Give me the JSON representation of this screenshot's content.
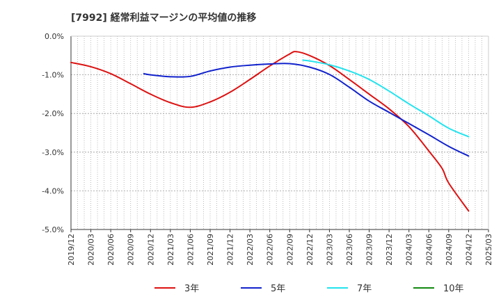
{
  "chart_data": {
    "type": "line",
    "title": "[7992]  経常利益マージンの平均値の推移",
    "xlabel": "",
    "ylabel": "",
    "ylim": [
      -5.0,
      0.0
    ],
    "yticks": [
      0.0,
      -1.0,
      -2.0,
      -3.0,
      -4.0,
      -5.0
    ],
    "ytick_labels": [
      "0.0%",
      "-1.0%",
      "-2.0%",
      "-3.0%",
      "-4.0%",
      "-5.0%"
    ],
    "x_range": [
      "2019/12",
      "2025/03"
    ],
    "xtick_labels": [
      "2019/12",
      "2020/03",
      "2020/06",
      "2020/09",
      "2020/12",
      "2021/03",
      "2021/06",
      "2021/09",
      "2021/12",
      "2022/03",
      "2022/06",
      "2022/09",
      "2022/12",
      "2023/03",
      "2023/06",
      "2023/09",
      "2023/12",
      "2024/03",
      "2024/06",
      "2024/09",
      "2024/12",
      "2025/03"
    ],
    "grid": true,
    "legend_position": "bottom",
    "series": [
      {
        "name": "3年",
        "color": "#dd1111",
        "points": [
          [
            "2019/12",
            -0.68
          ],
          [
            "2020/03",
            -0.79
          ],
          [
            "2020/06",
            -0.97
          ],
          [
            "2020/09",
            -1.23
          ],
          [
            "2020/12",
            -1.5
          ],
          [
            "2021/03",
            -1.72
          ],
          [
            "2021/06",
            -1.84
          ],
          [
            "2021/09",
            -1.7
          ],
          [
            "2021/12",
            -1.45
          ],
          [
            "2022/03",
            -1.12
          ],
          [
            "2022/06",
            -0.77
          ],
          [
            "2022/09",
            -0.46
          ],
          [
            "2022/10",
            -0.4
          ],
          [
            "2022/12",
            -0.5
          ],
          [
            "2023/03",
            -0.76
          ],
          [
            "2023/06",
            -1.12
          ],
          [
            "2023/09",
            -1.5
          ],
          [
            "2023/12",
            -1.88
          ],
          [
            "2024/03",
            -2.34
          ],
          [
            "2024/06",
            -2.97
          ],
          [
            "2024/08",
            -3.42
          ],
          [
            "2024/09",
            -3.8
          ],
          [
            "2024/12",
            -4.52
          ]
        ]
      },
      {
        "name": "5年",
        "color": "#1122cc",
        "points": [
          [
            "2020/11",
            -0.97
          ],
          [
            "2020/12",
            -1.0
          ],
          [
            "2021/03",
            -1.05
          ],
          [
            "2021/06",
            -1.04
          ],
          [
            "2021/09",
            -0.9
          ],
          [
            "2021/12",
            -0.8
          ],
          [
            "2022/03",
            -0.75
          ],
          [
            "2022/06",
            -0.72
          ],
          [
            "2022/09",
            -0.71
          ],
          [
            "2022/12",
            -0.8
          ],
          [
            "2023/03",
            -0.99
          ],
          [
            "2023/06",
            -1.32
          ],
          [
            "2023/09",
            -1.68
          ],
          [
            "2023/12",
            -1.97
          ],
          [
            "2024/03",
            -2.26
          ],
          [
            "2024/06",
            -2.55
          ],
          [
            "2024/09",
            -2.85
          ],
          [
            "2024/12",
            -3.1
          ]
        ]
      },
      {
        "name": "7年",
        "color": "#22e3ee",
        "points": [
          [
            "2022/11",
            -0.62
          ],
          [
            "2022/12",
            -0.64
          ],
          [
            "2023/03",
            -0.74
          ],
          [
            "2023/06",
            -0.9
          ],
          [
            "2023/09",
            -1.12
          ],
          [
            "2023/12",
            -1.42
          ],
          [
            "2024/03",
            -1.75
          ],
          [
            "2024/06",
            -2.06
          ],
          [
            "2024/09",
            -2.38
          ],
          [
            "2024/12",
            -2.6
          ]
        ]
      },
      {
        "name": "10年",
        "color": "#118811",
        "points": []
      }
    ]
  }
}
